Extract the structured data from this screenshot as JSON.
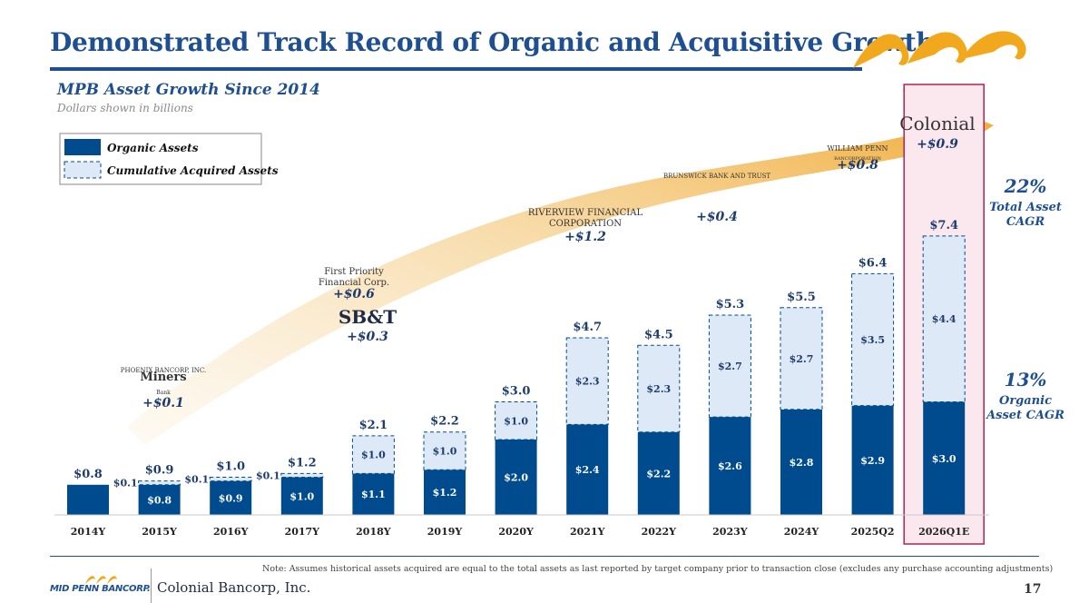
{
  "title": "Demonstrated Track Record of Organic and Acquisitive Growth",
  "subtitle": "MPB Asset Growth Since 2014",
  "units_note": "Dollars shown in billions",
  "footnote": "Note: Assumes historical assets acquired are equal to the total assets as last reported by target company prior to transaction close (excludes any purchase accounting adjustments)",
  "page_number": "17",
  "footer": {
    "mpb_logo_text": "MID PENN BANCORP.",
    "colonial_logo_text": "Colonial Bancorp, Inc."
  },
  "colors": {
    "organic": "#004b8d",
    "acquired": "#dde9f7",
    "title": "#1d4f91",
    "arrow": "#f2b84b",
    "highlight": "#b22250"
  },
  "cagr": [
    {
      "pct": "22%",
      "label": "Total Asset CAGR"
    },
    {
      "pct": "13%",
      "label": "Organic Asset CAGR"
    }
  ],
  "acquisitions": [
    {
      "name_lines": [
        "PHOENIX BANCORP, INC.",
        "Miners",
        "Bank"
      ],
      "value": "+$0.1"
    },
    {
      "name_lines": [
        "First Priority",
        "Financial Corp."
      ],
      "value": "+$0.6"
    },
    {
      "name_lines": [
        "SB&T"
      ],
      "value": "+$0.3"
    },
    {
      "name_lines": [
        "RIVERVIEW FINANCIAL",
        "CORPORATION"
      ],
      "value": "+$1.2"
    },
    {
      "name_lines": [
        "BRUNSWICK BANK AND TRUST"
      ],
      "value": "+$0.4"
    },
    {
      "name_lines": [
        "WILLIAM PENN",
        "BANCORPORATION"
      ],
      "value": "+$0.8"
    },
    {
      "name_lines": [
        "Colonial"
      ],
      "value": "+$0.9"
    }
  ],
  "chart_data": {
    "type": "bar",
    "stacked": true,
    "title": "MPB Asset Growth Since 2014",
    "ylabel": "Dollars shown in billions",
    "ylim": [
      0,
      8
    ],
    "categories": [
      "2014Y",
      "2015Y",
      "2016Y",
      "2017Y",
      "2018Y",
      "2019Y",
      "2020Y",
      "2021Y",
      "2022Y",
      "2023Y",
      "2024Y",
      "2025Q2",
      "2026Q1E"
    ],
    "series": [
      {
        "name": "Organic Assets",
        "values": [
          0.8,
          0.8,
          0.9,
          1.0,
          1.1,
          1.2,
          2.0,
          2.4,
          2.2,
          2.6,
          2.8,
          2.9,
          3.0
        ],
        "labels": [
          "",
          "$0.8",
          "$0.9",
          "$1.0",
          "$1.1",
          "$1.2",
          "$2.0",
          "$2.4",
          "$2.2",
          "$2.6",
          "$2.8",
          "$2.9",
          "$3.0"
        ]
      },
      {
        "name": "Cumulative Acquired Assets",
        "values": [
          0,
          0.1,
          0.1,
          0.1,
          1.0,
          1.0,
          1.0,
          2.3,
          2.3,
          2.7,
          2.7,
          3.5,
          4.4
        ],
        "labels": [
          "",
          "$0.1",
          "$0.1",
          "$0.1",
          "$1.0",
          "$1.0",
          "$1.0",
          "$2.3",
          "$2.3",
          "$2.7",
          "$2.7",
          "$3.5",
          "$4.4"
        ]
      }
    ],
    "totals": [
      "$0.8",
      "$0.9",
      "$1.0",
      "$1.2",
      "$2.1",
      "$2.2",
      "$3.0",
      "$4.7",
      "$4.5",
      "$5.3",
      "$5.5",
      "$6.4",
      "$7.4"
    ],
    "legend": [
      "Organic Assets",
      "Cumulative Acquired Assets"
    ],
    "highlight_category": "2026Q1E"
  }
}
